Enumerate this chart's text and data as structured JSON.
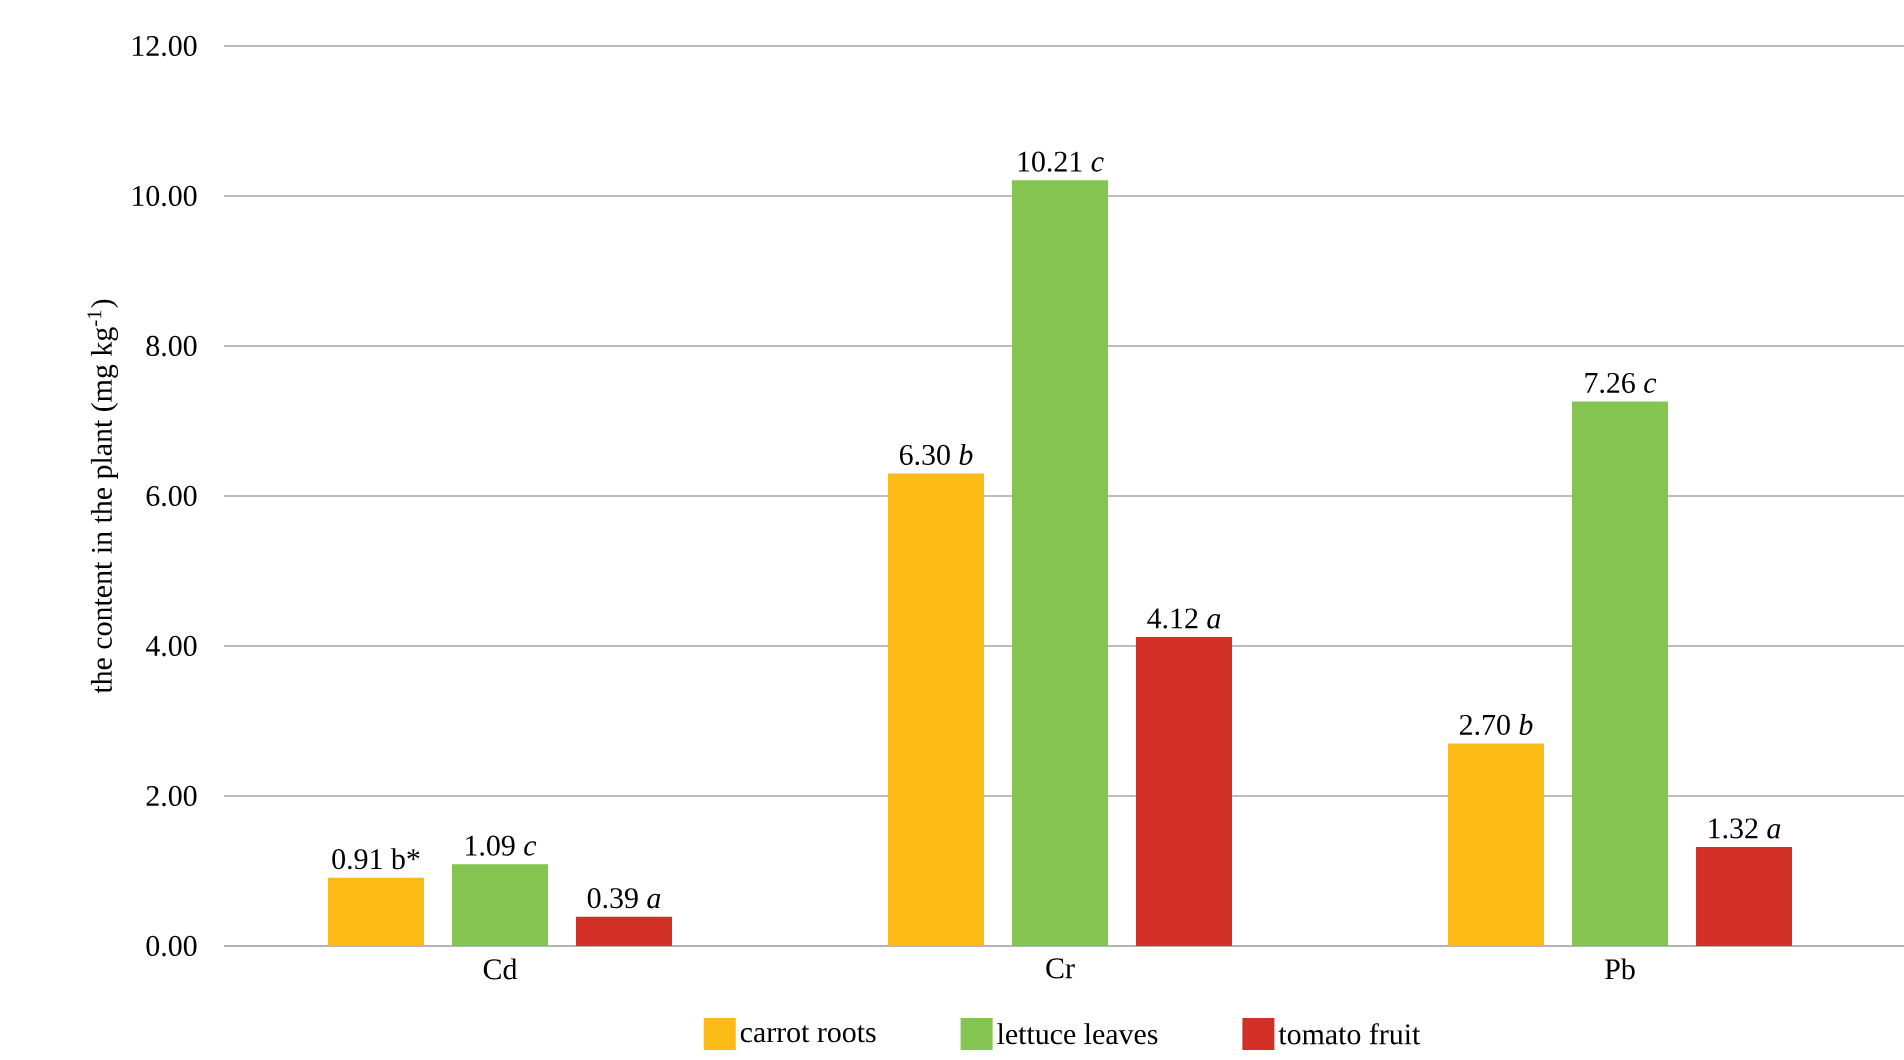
{
  "chart_data": {
    "type": "bar",
    "ylabel": "the content in the plant (mg kg$^{-1}$)",
    "categories": [
      "Cd",
      "Cr",
      "Pb"
    ],
    "series": [
      {
        "name": "carrot roots",
        "color": "#fbba16",
        "values": [
          0.91,
          6.3,
          2.7
        ],
        "value_labels": [
          "0.91 b*",
          "6.30 *b*",
          "2.70 *b*"
        ]
      },
      {
        "name": "lettuce leaves",
        "color": "#84c450",
        "values": [
          1.09,
          10.21,
          7.26
        ],
        "value_labels": [
          "1.09 *c*",
          "10.21 *c*",
          "7.26 *c*"
        ]
      },
      {
        "name": "tomato fruit",
        "color": "#d22f27",
        "values": [
          0.39,
          4.12,
          1.32
        ],
        "value_labels": [
          "0.39 *a*",
          "4.12 *a*",
          "1.32 *a*"
        ]
      }
    ],
    "ylim": [
      0,
      12
    ],
    "yticks": [
      {
        "value": 0,
        "label": "0.00"
      },
      {
        "value": 2,
        "label": "2.00"
      },
      {
        "value": 4,
        "label": "4.00"
      },
      {
        "value": 6,
        "label": "6.00"
      },
      {
        "value": 8,
        "label": "8.00"
      },
      {
        "value": 10,
        "label": "10.00"
      },
      {
        "value": 12,
        "label": "12.00"
      }
    ],
    "grid": "y",
    "legend": "bottom"
  }
}
